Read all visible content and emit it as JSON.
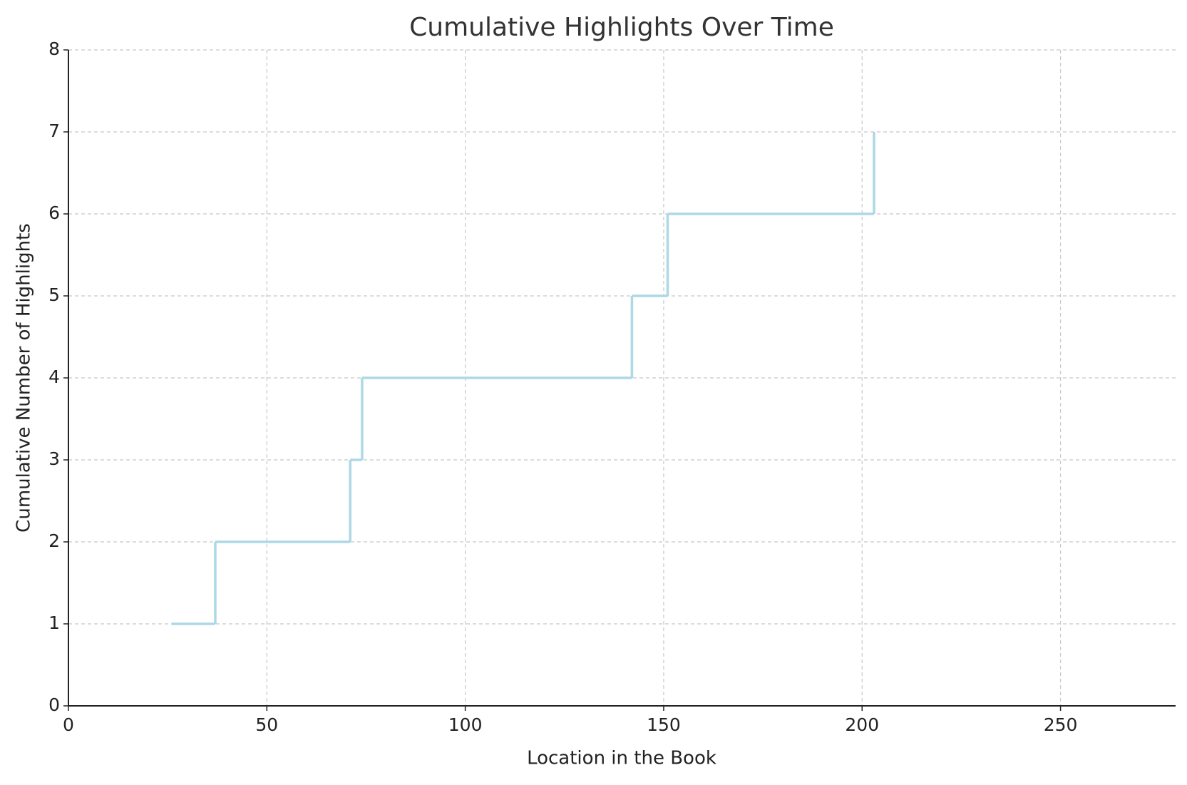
{
  "chart_data": {
    "type": "step",
    "title": "Cumulative Highlights Over Time",
    "x_label": "Location in the Book",
    "y_label": "Cumulative Number of Highlights",
    "x": [
      26,
      37,
      71,
      74,
      142,
      151,
      203
    ],
    "values": [
      1,
      2,
      3,
      4,
      5,
      6,
      7
    ],
    "color": "#add8e6",
    "xlim": [
      0,
      279
    ],
    "xticks": [
      0,
      50,
      100,
      150,
      200,
      250
    ],
    "ylim": [
      0,
      8
    ],
    "yticks": [
      0,
      1,
      2,
      3,
      4,
      5,
      6,
      7,
      8
    ],
    "grid": true
  }
}
